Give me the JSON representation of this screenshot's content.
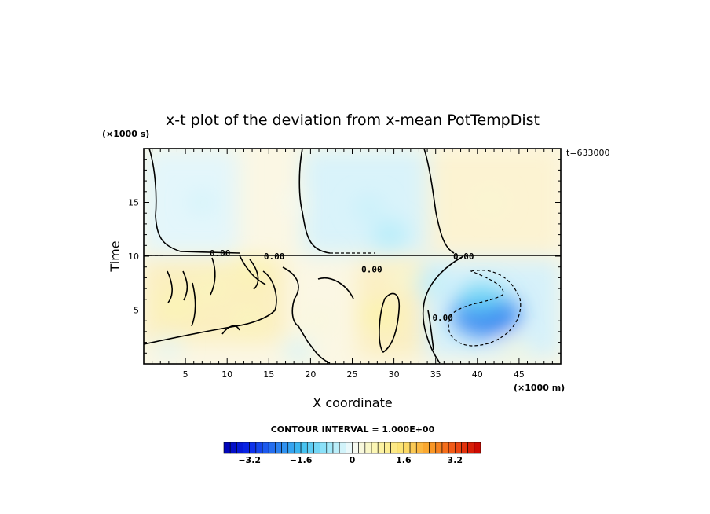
{
  "chart_data": {
    "type": "heatmap",
    "title": "x-t plot of the deviation from x-mean PotTempDist",
    "xlabel": "X coordinate",
    "ylabel": "Time",
    "x_unit": "(×1000 m)",
    "y_unit": "(×1000 s)",
    "time_stamp": "t=633000",
    "xlim": [
      0,
      50
    ],
    "ylim": [
      0,
      20
    ],
    "x_ticks": [
      5,
      10,
      15,
      20,
      25,
      30,
      35,
      40,
      45
    ],
    "y_ticks": [
      5,
      10,
      15
    ],
    "contour_interval_text": "CONTOUR INTERVAL = 1.000E+00",
    "contour_labels": [
      {
        "x": 7.9,
        "y": 10.3,
        "text": "0.00"
      },
      {
        "x": 14.4,
        "y": 10.0,
        "text": "0.00"
      },
      {
        "x": 26.1,
        "y": 8.8,
        "text": "0.00"
      },
      {
        "x": 34.6,
        "y": 4.3,
        "text": "0.00"
      },
      {
        "x": 37.1,
        "y": 10.0,
        "text": "0.00"
      }
    ],
    "anomalies": [
      {
        "x": 41.0,
        "y": 4.6,
        "value": -2.4
      },
      {
        "x": 40.5,
        "y": 6.0,
        "value": -1.2
      },
      {
        "x": 34.5,
        "y": 7.5,
        "value": -0.5
      },
      {
        "x": 28.5,
        "y": 4.5,
        "value": 0.8
      },
      {
        "x": 31.0,
        "y": 8.0,
        "value": 0.4
      },
      {
        "x": 21.0,
        "y": 4.0,
        "value": 0.3
      },
      {
        "x": 4.0,
        "y": 5.5,
        "value": 0.7
      },
      {
        "x": 8.0,
        "y": 7.0,
        "value": 0.6
      },
      {
        "x": 12.5,
        "y": 4.0,
        "value": 0.6
      },
      {
        "x": 13.0,
        "y": 8.5,
        "value": 0.7
      },
      {
        "x": 3.0,
        "y": 1.5,
        "value": -0.2
      },
      {
        "x": 18.5,
        "y": 1.2,
        "value": -0.3
      },
      {
        "x": 44.5,
        "y": 1.3,
        "value": 0.3
      },
      {
        "x": 27.0,
        "y": 14.5,
        "value": -0.4
      },
      {
        "x": 29.5,
        "y": 12.0,
        "value": -0.6
      },
      {
        "x": 7.0,
        "y": 15.0,
        "value": -0.3
      },
      {
        "x": 41.5,
        "y": 15.0,
        "value": 0.4
      },
      {
        "x": 18.0,
        "y": 15.0,
        "value": 0.1
      }
    ],
    "colorbar": {
      "min": -4,
      "max": 4,
      "step": 0.2,
      "tick_values": [
        -3.2,
        -1.6,
        0,
        1.6,
        3.2
      ],
      "tick_labels": [
        "−3.2",
        "−1.6",
        "0",
        "1.6",
        "3.2"
      ]
    }
  }
}
